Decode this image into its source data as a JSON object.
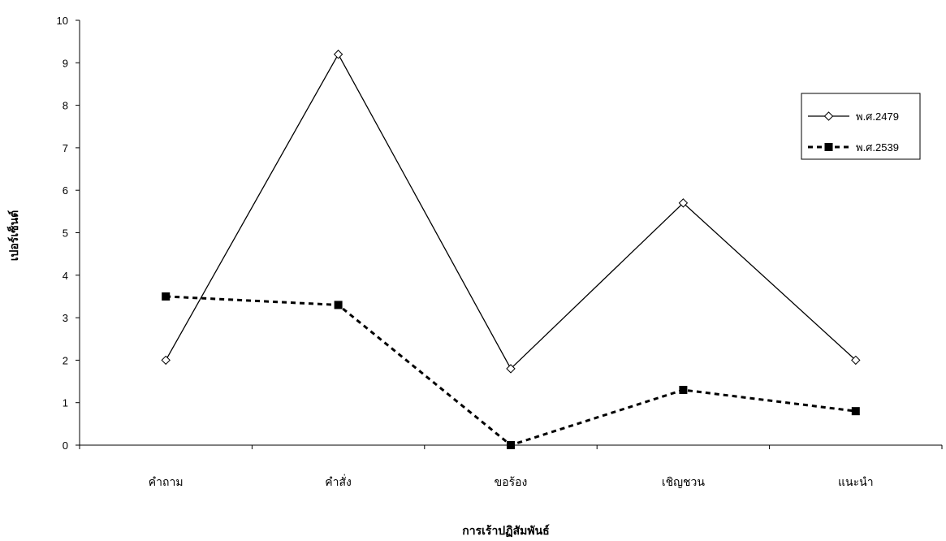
{
  "chart_data": {
    "type": "line",
    "categories": [
      "คำถาม",
      "คำสั่ง",
      "ขอร้อง",
      "เชิญชวน",
      "แนะนำ"
    ],
    "series": [
      {
        "name": "พ.ศ.2479",
        "values": [
          2.0,
          9.2,
          1.8,
          5.7,
          2.0
        ],
        "line_style": "solid",
        "marker": "diamond-open",
        "color": "#000000"
      },
      {
        "name": "พ.ศ.2539",
        "values": [
          3.5,
          3.3,
          0.0,
          1.3,
          0.8
        ],
        "line_style": "dashed",
        "marker": "square-filled",
        "color": "#000000"
      }
    ],
    "title": "",
    "xlabel": "การเร้าปฏิสัมพันธ์",
    "ylabel": "เปอร์เซ็นต์",
    "ylim": [
      0,
      10
    ],
    "yticks": [
      0,
      1,
      2,
      3,
      4,
      5,
      6,
      7,
      8,
      9,
      10
    ],
    "grid": false,
    "legend_position": "right"
  }
}
